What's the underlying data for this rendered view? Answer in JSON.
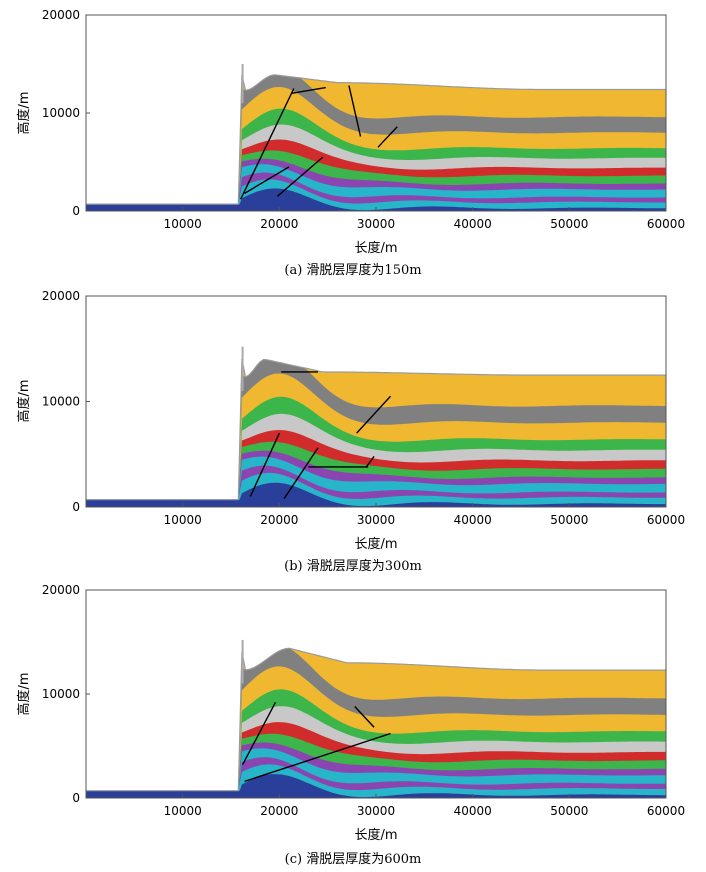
{
  "figure": {
    "panel_count": 3
  },
  "chart_data": [
    {
      "type": "area",
      "panel": "a",
      "caption": "(a) 滑脱层厚度为150m",
      "xlabel": "长度/m",
      "ylabel": "高度/m",
      "xlim": [
        0,
        60000
      ],
      "ylim": [
        0,
        20000
      ],
      "xticks": [
        "10000",
        "20000",
        "30000",
        "40000",
        "50000",
        "60000"
      ],
      "yticks": [
        "0",
        "10000",
        "20000"
      ],
      "profile": {
        "basin_level": 700,
        "step_x": 16000,
        "peak": {
          "x": 19500,
          "y": 13900
        },
        "spike": {
          "x": 16200,
          "y": 15000
        },
        "plateau_y": 12400,
        "shoulder": {
          "x": 26000,
          "y": 13100
        }
      },
      "strata_colors": [
        "#2a3f9a",
        "#27b5c9",
        "#8b45b0",
        "#27b5c9",
        "#8b45b0",
        "#3cb54a",
        "#d22b2b",
        "#c8c8c8",
        "#3cb54a",
        "#efb830",
        "#808080",
        "#efb830"
      ],
      "faults": [
        {
          "x1": 16000,
          "y1": 1200,
          "x2": 21500,
          "y2": 12500
        },
        {
          "x1": 16400,
          "y1": 1800,
          "x2": 21000,
          "y2": 4500
        },
        {
          "x1": 19800,
          "y1": 1500,
          "x2": 24500,
          "y2": 5500
        },
        {
          "x1": 21200,
          "y1": 12000,
          "x2": 24800,
          "y2": 12600
        },
        {
          "x1": 27200,
          "y1": 12800,
          "x2": 28400,
          "y2": 7600
        },
        {
          "x1": 30200,
          "y1": 6500,
          "x2": 32200,
          "y2": 8600
        }
      ]
    },
    {
      "type": "area",
      "panel": "b",
      "caption": "(b) 滑脱层厚度为300m",
      "xlabel": "长度/m",
      "ylabel": "高度/m",
      "xlim": [
        0,
        60000
      ],
      "ylim": [
        0,
        20000
      ],
      "xticks": [
        "10000",
        "20000",
        "30000",
        "40000",
        "50000",
        "60000"
      ],
      "yticks": [
        "0",
        "10000",
        "20000"
      ],
      "profile": {
        "basin_level": 700,
        "step_x": 16000,
        "peak": {
          "x": 18500,
          "y": 14000
        },
        "spike": {
          "x": 16200,
          "y": 15200
        },
        "plateau_y": 12500,
        "shoulder": {
          "x": 24500,
          "y": 12800
        }
      },
      "strata_colors": [
        "#2a3f9a",
        "#27b5c9",
        "#8b45b0",
        "#27b5c9",
        "#8b45b0",
        "#3cb54a",
        "#d22b2b",
        "#c8c8c8",
        "#3cb54a",
        "#efb830",
        "#808080",
        "#efb830"
      ],
      "faults": [
        {
          "x1": 17000,
          "y1": 1000,
          "x2": 20000,
          "y2": 7000
        },
        {
          "x1": 20500,
          "y1": 800,
          "x2": 24000,
          "y2": 5600
        },
        {
          "x1": 23000,
          "y1": 3800,
          "x2": 29200,
          "y2": 3800
        },
        {
          "x1": 29000,
          "y1": 3800,
          "x2": 29800,
          "y2": 4800
        },
        {
          "x1": 28000,
          "y1": 7000,
          "x2": 31500,
          "y2": 10500
        },
        {
          "x1": 20200,
          "y1": 12800,
          "x2": 24000,
          "y2": 12800
        }
      ]
    },
    {
      "type": "area",
      "panel": "c",
      "caption": "(c) 滑脱层厚度为600m",
      "xlabel": "长度/m",
      "ylabel": "高度/m",
      "xlim": [
        0,
        60000
      ],
      "ylim": [
        0,
        20000
      ],
      "xticks": [
        "10000",
        "20000",
        "30000",
        "40000",
        "50000",
        "60000"
      ],
      "yticks": [
        "0",
        "10000",
        "20000"
      ],
      "profile": {
        "basin_level": 700,
        "step_x": 16000,
        "peak": {
          "x": 21000,
          "y": 14400
        },
        "spike": {
          "x": 16200,
          "y": 15200
        },
        "plateau_y": 12300,
        "shoulder": {
          "x": 27000,
          "y": 13000
        }
      },
      "strata_colors": [
        "#2a3f9a",
        "#27b5c9",
        "#8b45b0",
        "#27b5c9",
        "#8b45b0",
        "#3cb54a",
        "#d22b2b",
        "#c8c8c8",
        "#3cb54a",
        "#efb830",
        "#808080",
        "#efb830"
      ],
      "faults": [
        {
          "x1": 16200,
          "y1": 3200,
          "x2": 19600,
          "y2": 9200
        },
        {
          "x1": 16400,
          "y1": 1600,
          "x2": 31500,
          "y2": 6200
        },
        {
          "x1": 27800,
          "y1": 8800,
          "x2": 29800,
          "y2": 6800
        }
      ]
    }
  ]
}
